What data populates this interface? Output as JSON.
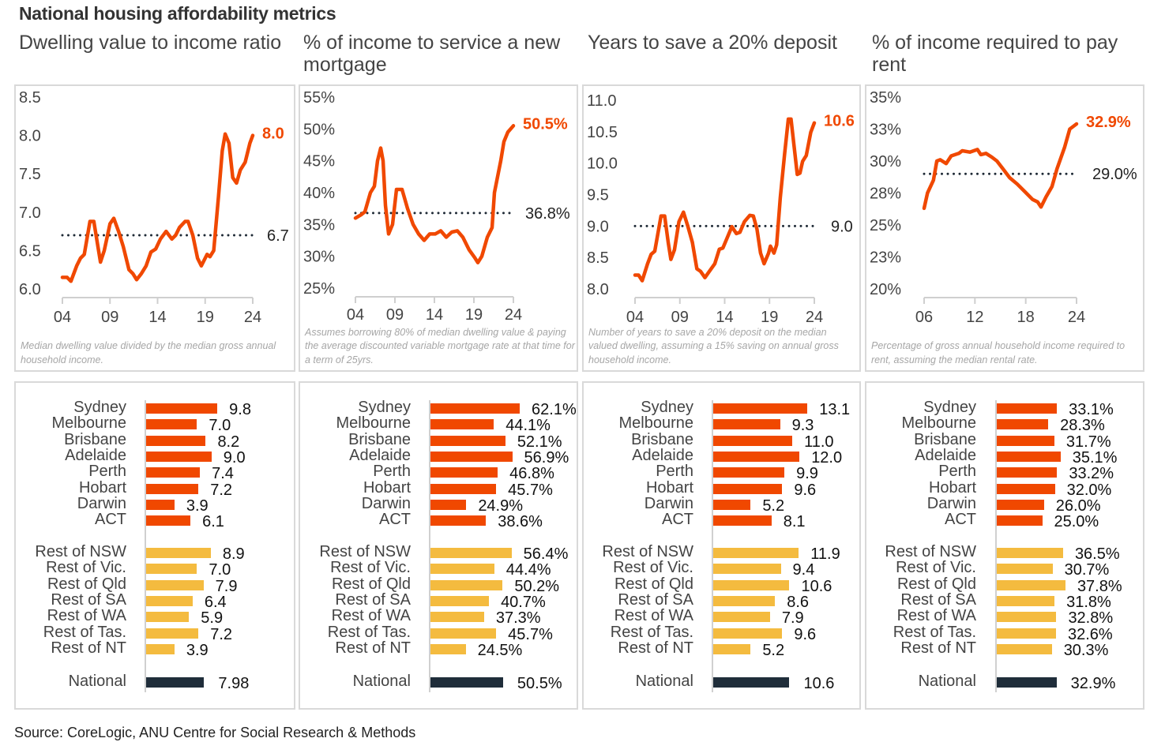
{
  "title": "National housing affordability metrics",
  "source": "Source:  CoreLogic, ANU Centre for Social Research & Methods",
  "colors": {
    "line": "#f04800",
    "avg": "#1f2a36",
    "city": "#f04800",
    "rest": "#f4bb3f",
    "national": "#1f2d3a",
    "axis": "#cfcfcf"
  },
  "chart_data": [
    {
      "type": "line",
      "title": "Dwelling value to income ratio",
      "note": "Median dwelling value divided by the median gross annual household income.",
      "ylim": [
        6.0,
        8.5
      ],
      "yticks": [
        {
          "v": 8.5,
          "l": "8.5"
        },
        {
          "v": 8.0,
          "l": "8.0"
        },
        {
          "v": 7.5,
          "l": "7.5"
        },
        {
          "v": 7.0,
          "l": "7.0"
        },
        {
          "v": 6.5,
          "l": "6.5"
        },
        {
          "v": 6.0,
          "l": "6.0"
        }
      ],
      "xlim": [
        2004,
        2024
      ],
      "xticks": [
        {
          "v": 2004,
          "l": "04"
        },
        {
          "v": 2009,
          "l": "09"
        },
        {
          "v": 2014,
          "l": "14"
        },
        {
          "v": 2019,
          "l": "19"
        },
        {
          "v": 2024,
          "l": "24"
        }
      ],
      "average": 6.7,
      "average_label": "6.7",
      "end_label": "8.0",
      "x": [
        2004,
        2004.5,
        2004.9,
        2005.5,
        2005.9,
        2006.3,
        2006.9,
        2007.3,
        2007.8,
        2008,
        2008.4,
        2009,
        2009.4,
        2009.9,
        2010.4,
        2011,
        2011.4,
        2011.8,
        2012.3,
        2012.8,
        2013.3,
        2013.8,
        2014.3,
        2014.9,
        2015.5,
        2015.9,
        2016.3,
        2016.9,
        2017.2,
        2017.7,
        2018.2,
        2018.6,
        2019.2,
        2019.5,
        2019.9,
        2020.4,
        2020.8,
        2021.1,
        2021.5,
        2021.9,
        2022.3,
        2022.7,
        2023.2,
        2023.7,
        2024
      ],
      "y": [
        6.15,
        6.15,
        6.1,
        6.3,
        6.4,
        6.45,
        6.88,
        6.88,
        6.5,
        6.35,
        6.5,
        6.85,
        6.92,
        6.75,
        6.55,
        6.25,
        6.2,
        6.12,
        6.2,
        6.3,
        6.48,
        6.52,
        6.65,
        6.75,
        6.65,
        6.7,
        6.8,
        6.88,
        6.88,
        6.7,
        6.4,
        6.3,
        6.45,
        6.42,
        6.5,
        7.2,
        7.8,
        8.02,
        7.9,
        7.45,
        7.38,
        7.55,
        7.65,
        7.9,
        8.0
      ]
    },
    {
      "type": "line",
      "title": "% of income to service a new mortgage",
      "note": "Assumes borrowing 80% of median dwelling value & paying the average discounted variable mortgage rate at that time for a term of 25yrs.",
      "ylim": [
        25,
        55
      ],
      "yticks": [
        {
          "v": 55,
          "l": "55%"
        },
        {
          "v": 50,
          "l": "50%"
        },
        {
          "v": 45,
          "l": "45%"
        },
        {
          "v": 40,
          "l": "40%"
        },
        {
          "v": 35,
          "l": "35%"
        },
        {
          "v": 30,
          "l": "30%"
        },
        {
          "v": 25,
          "l": "25%"
        }
      ],
      "xlim": [
        2004,
        2024
      ],
      "xticks": [
        {
          "v": 2004,
          "l": "04"
        },
        {
          "v": 2009,
          "l": "09"
        },
        {
          "v": 2014,
          "l": "14"
        },
        {
          "v": 2019,
          "l": "19"
        },
        {
          "v": 2024,
          "l": "24"
        }
      ],
      "average": 36.8,
      "average_label": "36.8%",
      "end_label": "50.5%",
      "x": [
        2004,
        2004.7,
        2005.2,
        2005.9,
        2006.4,
        2006.8,
        2007.2,
        2007.5,
        2007.8,
        2008.2,
        2008.7,
        2009.2,
        2009.9,
        2010.6,
        2011.3,
        2012,
        2012.7,
        2013.4,
        2014.1,
        2014.8,
        2015.5,
        2016.2,
        2016.9,
        2017.6,
        2018.4,
        2019.1,
        2019.5,
        2020,
        2020.7,
        2021.3,
        2021.6,
        2022.4,
        2022.8,
        2023.3,
        2024
      ],
      "y": [
        36,
        36.5,
        37,
        40,
        41,
        45,
        47,
        45,
        38,
        33.5,
        35,
        40.5,
        40.5,
        37.5,
        35,
        33.5,
        32.5,
        33.5,
        33.5,
        34,
        33,
        33.8,
        34,
        33,
        31,
        29.8,
        29,
        30,
        33,
        34.5,
        40,
        45,
        48,
        49.5,
        50.5
      ]
    },
    {
      "type": "line",
      "title": "Years to save a 20% deposit",
      "note": "Number of years to save a 20% deposit on the median valued dwelling, assuming a 15% saving on annual gross household income.",
      "ylim": [
        8.0,
        11.0
      ],
      "yticks": [
        {
          "v": 11.0,
          "l": "11.0"
        },
        {
          "v": 10.5,
          "l": "10.5"
        },
        {
          "v": 10.0,
          "l": "10.0"
        },
        {
          "v": 9.5,
          "l": "9.5"
        },
        {
          "v": 9.0,
          "l": "9.0"
        },
        {
          "v": 8.5,
          "l": "8.5"
        },
        {
          "v": 8.0,
          "l": "8.0"
        }
      ],
      "xlim": [
        2004,
        2024
      ],
      "xticks": [
        {
          "v": 2004,
          "l": "04"
        },
        {
          "v": 2009,
          "l": "09"
        },
        {
          "v": 2014,
          "l": "14"
        },
        {
          "v": 2019,
          "l": "19"
        },
        {
          "v": 2024,
          "l": "24"
        }
      ],
      "average": 9.0,
      "average_label": "9.0",
      "end_label": "10.6",
      "x": [
        2004,
        2004.4,
        2004.8,
        2005.4,
        2005.8,
        2006.2,
        2006.9,
        2007.3,
        2007.7,
        2008,
        2008.4,
        2008.9,
        2009.4,
        2009.9,
        2010.4,
        2010.9,
        2011.3,
        2011.8,
        2012.4,
        2012.9,
        2013.4,
        2013.8,
        2014.3,
        2014.8,
        2015.3,
        2015.7,
        2016.2,
        2016.8,
        2017.2,
        2017.6,
        2018,
        2018.4,
        2018.9,
        2019.1,
        2019.5,
        2019.8,
        2020.2,
        2020.7,
        2021.1,
        2021.4,
        2021.8,
        2022.1,
        2022.4,
        2022.7,
        2023.1,
        2023.6,
        2024
      ],
      "y": [
        8.22,
        8.22,
        8.13,
        8.4,
        8.55,
        8.6,
        9.16,
        9.16,
        8.74,
        8.47,
        8.62,
        9.07,
        9.22,
        8.99,
        8.74,
        8.32,
        8.28,
        8.18,
        8.3,
        8.4,
        8.63,
        8.65,
        8.82,
        8.99,
        8.88,
        8.9,
        9.07,
        9.17,
        9.16,
        8.95,
        8.57,
        8.4,
        8.57,
        8.68,
        8.57,
        8.7,
        9.45,
        10.16,
        10.7,
        10.7,
        10.2,
        9.82,
        9.84,
        10.03,
        10.12,
        10.49,
        10.64
      ]
    },
    {
      "type": "line",
      "title": "% of income required to pay rent",
      "note": "Percentage of gross annual household income required to rent, assuming the median rental rate.",
      "ylim": [
        20,
        35
      ],
      "yticks": [
        {
          "v": 35,
          "l": "35%"
        },
        {
          "v": 32.5,
          "l": "33%"
        },
        {
          "v": 30,
          "l": "30%"
        },
        {
          "v": 27.5,
          "l": "28%"
        },
        {
          "v": 25,
          "l": "25%"
        },
        {
          "v": 22.5,
          "l": "23%"
        },
        {
          "v": 20,
          "l": "20%"
        }
      ],
      "xlim": [
        2006,
        2024
      ],
      "xticks": [
        {
          "v": 2006,
          "l": "06"
        },
        {
          "v": 2012,
          "l": "12"
        },
        {
          "v": 2018,
          "l": "18"
        },
        {
          "v": 2024,
          "l": "24"
        }
      ],
      "average": 29.0,
      "average_label": "29.0%",
      "end_label": "32.9%",
      "x": [
        2006,
        2006.4,
        2007.1,
        2007.5,
        2007.9,
        2008.6,
        2009.2,
        2010.1,
        2010.5,
        2011.4,
        2012.3,
        2012.7,
        2013.3,
        2014,
        2014.6,
        2015.3,
        2016.1,
        2017,
        2017.9,
        2018.8,
        2019.4,
        2019.8,
        2020.4,
        2021.1,
        2021.7,
        2022.6,
        2023.2,
        2024
      ],
      "y": [
        26.3,
        27.5,
        28.5,
        30,
        30.1,
        29.8,
        30.4,
        30.6,
        30.8,
        30.7,
        30.9,
        30.5,
        30.6,
        30.3,
        30,
        29.4,
        28.7,
        28.2,
        27.6,
        27,
        26.8,
        26.4,
        27.2,
        28,
        29.4,
        31.1,
        32.5,
        32.9
      ]
    },
    {
      "type": "bar",
      "orientation": "horizontal",
      "cities": [
        {
          "l": "Sydney",
          "v": 9.8,
          "t": "9.8"
        },
        {
          "l": "Melbourne",
          "v": 7.0,
          "t": "7.0"
        },
        {
          "l": "Brisbane",
          "v": 8.2,
          "t": "8.2"
        },
        {
          "l": "Adelaide",
          "v": 9.0,
          "t": "9.0"
        },
        {
          "l": "Perth",
          "v": 7.4,
          "t": "7.4"
        },
        {
          "l": "Hobart",
          "v": 7.2,
          "t": "7.2"
        },
        {
          "l": "Darwin",
          "v": 3.9,
          "t": "3.9"
        },
        {
          "l": "ACT",
          "v": 6.1,
          "t": "6.1"
        }
      ],
      "rest": [
        {
          "l": "Rest of NSW",
          "v": 8.9,
          "t": "8.9"
        },
        {
          "l": "Rest of Vic.",
          "v": 7.0,
          "t": "7.0"
        },
        {
          "l": "Rest of Qld",
          "v": 7.9,
          "t": "7.9"
        },
        {
          "l": "Rest of SA",
          "v": 6.4,
          "t": "6.4"
        },
        {
          "l": "Rest of WA",
          "v": 5.9,
          "t": "5.9"
        },
        {
          "l": "Rest of Tas.",
          "v": 7.2,
          "t": "7.2"
        },
        {
          "l": "Rest of NT",
          "v": 3.9,
          "t": "3.9"
        }
      ],
      "national": {
        "l": "National",
        "v": 7.98,
        "t": "7.98"
      }
    },
    {
      "type": "bar",
      "orientation": "horizontal",
      "cities": [
        {
          "l": "Sydney",
          "v": 62.1,
          "t": "62.1%"
        },
        {
          "l": "Melbourne",
          "v": 44.1,
          "t": "44.1%"
        },
        {
          "l": "Brisbane",
          "v": 52.1,
          "t": "52.1%"
        },
        {
          "l": "Adelaide",
          "v": 56.9,
          "t": "56.9%"
        },
        {
          "l": "Perth",
          "v": 46.8,
          "t": "46.8%"
        },
        {
          "l": "Hobart",
          "v": 45.7,
          "t": "45.7%"
        },
        {
          "l": "Darwin",
          "v": 24.9,
          "t": "24.9%"
        },
        {
          "l": "ACT",
          "v": 38.6,
          "t": "38.6%"
        }
      ],
      "rest": [
        {
          "l": "Rest of NSW",
          "v": 56.4,
          "t": "56.4%"
        },
        {
          "l": "Rest of Vic.",
          "v": 44.4,
          "t": "44.4%"
        },
        {
          "l": "Rest of Qld",
          "v": 50.2,
          "t": "50.2%"
        },
        {
          "l": "Rest of SA",
          "v": 40.7,
          "t": "40.7%"
        },
        {
          "l": "Rest of WA",
          "v": 37.3,
          "t": "37.3%"
        },
        {
          "l": "Rest of Tas.",
          "v": 45.7,
          "t": "45.7%"
        },
        {
          "l": "Rest of NT",
          "v": 24.5,
          "t": "24.5%"
        }
      ],
      "national": {
        "l": "National",
        "v": 50.5,
        "t": "50.5%"
      }
    },
    {
      "type": "bar",
      "orientation": "horizontal",
      "cities": [
        {
          "l": "Sydney",
          "v": 13.1,
          "t": "13.1"
        },
        {
          "l": "Melbourne",
          "v": 9.3,
          "t": "9.3"
        },
        {
          "l": "Brisbane",
          "v": 11.0,
          "t": "11.0"
        },
        {
          "l": "Adelaide",
          "v": 12.0,
          "t": "12.0"
        },
        {
          "l": "Perth",
          "v": 9.9,
          "t": "9.9"
        },
        {
          "l": "Hobart",
          "v": 9.6,
          "t": "9.6"
        },
        {
          "l": "Darwin",
          "v": 5.2,
          "t": "5.2"
        },
        {
          "l": "ACT",
          "v": 8.1,
          "t": "8.1"
        }
      ],
      "rest": [
        {
          "l": "Rest of NSW",
          "v": 11.9,
          "t": "11.9"
        },
        {
          "l": "Rest of Vic.",
          "v": 9.4,
          "t": "9.4"
        },
        {
          "l": "Rest of Qld",
          "v": 10.6,
          "t": "10.6"
        },
        {
          "l": "Rest of SA",
          "v": 8.6,
          "t": "8.6"
        },
        {
          "l": "Rest of WA",
          "v": 7.9,
          "t": "7.9"
        },
        {
          "l": "Rest of Tas.",
          "v": 9.6,
          "t": "9.6"
        },
        {
          "l": "Rest of NT",
          "v": 5.2,
          "t": "5.2"
        }
      ],
      "national": {
        "l": "National",
        "v": 10.6,
        "t": "10.6"
      }
    },
    {
      "type": "bar",
      "orientation": "horizontal",
      "cities": [
        {
          "l": "Sydney",
          "v": 33.1,
          "t": "33.1%"
        },
        {
          "l": "Melbourne",
          "v": 28.3,
          "t": "28.3%"
        },
        {
          "l": "Brisbane",
          "v": 31.7,
          "t": "31.7%"
        },
        {
          "l": "Adelaide",
          "v": 35.1,
          "t": "35.1%"
        },
        {
          "l": "Perth",
          "v": 33.2,
          "t": "33.2%"
        },
        {
          "l": "Hobart",
          "v": 32.0,
          "t": "32.0%"
        },
        {
          "l": "Darwin",
          "v": 26.0,
          "t": "26.0%"
        },
        {
          "l": "ACT",
          "v": 25.0,
          "t": "25.0%"
        }
      ],
      "rest": [
        {
          "l": "Rest of NSW",
          "v": 36.5,
          "t": "36.5%"
        },
        {
          "l": "Rest of Vic.",
          "v": 30.7,
          "t": "30.7%"
        },
        {
          "l": "Rest of Qld",
          "v": 37.8,
          "t": "37.8%"
        },
        {
          "l": "Rest of SA",
          "v": 31.8,
          "t": "31.8%"
        },
        {
          "l": "Rest of WA",
          "v": 32.8,
          "t": "32.8%"
        },
        {
          "l": "Rest of Tas.",
          "v": 32.6,
          "t": "32.6%"
        },
        {
          "l": "Rest of NT",
          "v": 30.3,
          "t": "30.3%"
        }
      ],
      "national": {
        "l": "National",
        "v": 32.9,
        "t": "32.9%"
      }
    }
  ]
}
